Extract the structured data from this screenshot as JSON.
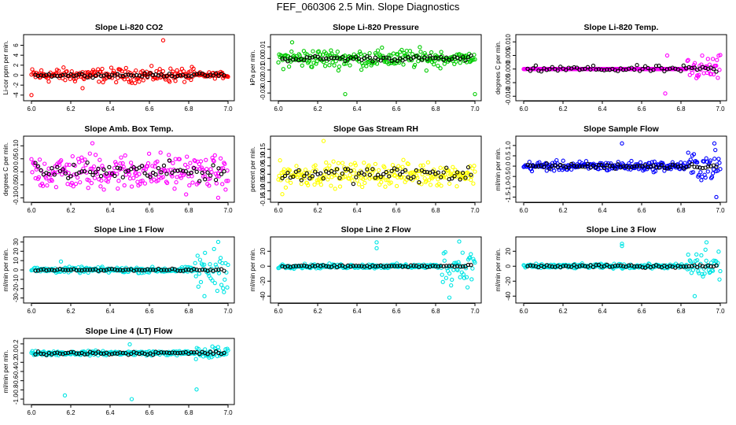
{
  "title": "FEF_060306  2.5 Min. Slope Diagnostics",
  "chart_data": [
    {
      "type": "scatter",
      "title": "Slope Li-820 CO2",
      "ylabel": "Li-cor ppm per min.",
      "color": "#ff0000",
      "xlim": [
        6.0,
        7.0
      ],
      "xticks": [
        6.0,
        6.2,
        6.4,
        6.6,
        6.8,
        7.0
      ],
      "ylim": [
        -4.5,
        7.5
      ],
      "yticks": [
        -4,
        -2,
        0,
        2,
        4,
        6
      ],
      "ytick_labels": [
        "-4",
        "-2",
        "0",
        "2",
        "4",
        "6"
      ],
      "spread": 1.2,
      "tail_spread": 0.5,
      "black_spread": 0.3,
      "outliers": [
        [
          6.67,
          7.0
        ],
        [
          6.0,
          -4.0
        ],
        [
          6.26,
          -2.6
        ]
      ]
    },
    {
      "type": "scatter",
      "title": "Slope Li-820 Pressure",
      "ylabel": "kPa per min.",
      "color": "#00cc00",
      "xlim": [
        6.0,
        7.0
      ],
      "xticks": [
        6.0,
        6.2,
        6.4,
        6.6,
        6.8,
        7.0
      ],
      "ylim": [
        -0.034,
        0.018
      ],
      "yticks": [
        -0.03,
        -0.02,
        -0.01,
        0.0,
        0.01
      ],
      "ytick_labels": [
        "-0.03",
        "-0.02",
        "-0.01",
        "0.00",
        "0.01"
      ],
      "spread": 0.007,
      "tail_spread": 0.004,
      "black_spread": 0.002,
      "outliers": [
        [
          6.34,
          -0.031
        ],
        [
          7.0,
          -0.031
        ],
        [
          6.07,
          0.014
        ]
      ]
    },
    {
      "type": "scatter",
      "title": "Slope Li-820 Temp.",
      "ylabel": "degrees C per min.",
      "color": "#ff00ff",
      "xlim": [
        6.0,
        7.0
      ],
      "xticks": [
        6.0,
        6.2,
        6.4,
        6.6,
        6.8,
        7.0
      ],
      "ylim": [
        -0.0105,
        0.0115
      ],
      "yticks": [
        -0.01,
        -0.005,
        0.0,
        0.005,
        0.01
      ],
      "ytick_labels": [
        "-0.010",
        "-0.005",
        "0.000",
        "0.005",
        "0.010"
      ],
      "spread": 0.0,
      "tail_spread": 0.004,
      "black_spread": 0.001,
      "outliers": [
        [
          6.72,
          -0.009
        ],
        [
          6.73,
          0.005
        ]
      ]
    },
    {
      "type": "scatter",
      "title": "Slope Amb. Box Temp.",
      "ylabel": "degrees C per min.",
      "color": "#ff00ff",
      "xlim": [
        6.0,
        7.0
      ],
      "xticks": [
        6.0,
        6.2,
        6.4,
        6.6,
        6.8,
        7.0
      ],
      "ylim": [
        -0.105,
        0.125
      ],
      "yticks": [
        -0.1,
        -0.05,
        0.0,
        0.05,
        0.1
      ],
      "ytick_labels": [
        "-0.10",
        "-0.05",
        "0.00",
        "0.05",
        "0.10"
      ],
      "spread": 0.06,
      "tail_spread": 0.05,
      "black_spread": 0.03,
      "outliers": [
        [
          6.31,
          0.11
        ],
        [
          6.95,
          -0.1
        ]
      ]
    },
    {
      "type": "scatter",
      "title": "Slope Gas Stream RH",
      "ylabel": "percent per min.",
      "color": "#ffff00",
      "xlim": [
        6.0,
        7.0
      ],
      "xticks": [
        6.0,
        6.2,
        6.4,
        6.6,
        6.8,
        7.0
      ],
      "ylim": [
        -0.15,
        0.21
      ],
      "yticks": [
        -0.15,
        -0.1,
        -0.05,
        0.0,
        0.05,
        0.1,
        0.15
      ],
      "ytick_labels": [
        "-0.15",
        "-0.10",
        "-0.05",
        "0.00",
        "0.05",
        "0.10",
        "0.15"
      ],
      "spread": 0.06,
      "tail_spread": 0.05,
      "black_spread": 0.04,
      "outliers": [
        [
          6.23,
          0.2
        ],
        [
          6.02,
          -0.12
        ]
      ]
    },
    {
      "type": "scatter",
      "title": "Slope Sample Flow",
      "ylabel": "ml/min per min.",
      "color": "#0000ff",
      "xlim": [
        6.0,
        7.0
      ],
      "xticks": [
        6.0,
        6.2,
        6.4,
        6.6,
        6.8,
        7.0
      ],
      "ylim": [
        -1.6,
        1.3
      ],
      "yticks": [
        -1.5,
        -1.0,
        -0.5,
        0.0,
        0.5,
        1.0
      ],
      "ytick_labels": [
        "-1.5",
        "-1.0",
        "-0.5",
        "0.0",
        "0.5",
        "1.0"
      ],
      "spread": 0.2,
      "tail_spread": 0.6,
      "black_spread": 0.1,
      "outliers": [
        [
          6.5,
          1.1
        ],
        [
          6.98,
          -1.5
        ],
        [
          6.97,
          1.1
        ]
      ]
    },
    {
      "type": "scatter",
      "title": "Slope Line 1 Flow",
      "ylabel": "ml/min per min.",
      "color": "#00e5e5",
      "xlim": [
        6.0,
        7.0
      ],
      "xticks": [
        6.0,
        6.2,
        6.4,
        6.6,
        6.8,
        7.0
      ],
      "ylim": [
        -32,
        32
      ],
      "yticks": [
        -30,
        -20,
        -10,
        0,
        10,
        20,
        30
      ],
      "ytick_labels": [
        "-30",
        "-20",
        "-10",
        "0",
        "10",
        "20",
        "30"
      ],
      "spread": 2.5,
      "tail_spread": 18,
      "black_spread": 1,
      "outliers": [
        [
          6.88,
          -28
        ],
        [
          6.95,
          30
        ],
        [
          6.15,
          9
        ]
      ]
    },
    {
      "type": "scatter",
      "title": "Slope Line 2 Flow",
      "ylabel": "ml/min per min.",
      "color": "#00e5e5",
      "xlim": [
        6.0,
        7.0
      ],
      "xticks": [
        6.0,
        6.2,
        6.4,
        6.6,
        6.8,
        7.0
      ],
      "ylim": [
        -45,
        35
      ],
      "yticks": [
        -40,
        -20,
        0,
        20
      ],
      "ytick_labels": [
        "-40",
        "-20",
        "0",
        "20"
      ],
      "spread": 2.5,
      "tail_spread": 20,
      "black_spread": 1.5,
      "outliers": [
        [
          6.5,
          32
        ],
        [
          6.5,
          24
        ],
        [
          6.87,
          -42
        ],
        [
          6.92,
          33
        ]
      ]
    },
    {
      "type": "scatter",
      "title": "Slope Line 3 Flow",
      "ylabel": "ml/min per min.",
      "color": "#00e5e5",
      "xlim": [
        6.0,
        7.0
      ],
      "xticks": [
        6.0,
        6.2,
        6.4,
        6.6,
        6.8,
        7.0
      ],
      "ylim": [
        -45,
        35
      ],
      "yticks": [
        -40,
        -20,
        0,
        20
      ],
      "ytick_labels": [
        "-40",
        "-20",
        "0",
        "20"
      ],
      "spread": 2.5,
      "tail_spread": 20,
      "black_spread": 1.5,
      "outliers": [
        [
          6.5,
          30
        ],
        [
          6.5,
          27
        ],
        [
          6.87,
          -40
        ],
        [
          6.93,
          32
        ]
      ]
    },
    {
      "type": "scatter",
      "title": "Slope Line 4 (LT) Flow",
      "ylabel": "ml/min per min.",
      "color": "#00e5e5",
      "xlim": [
        6.0,
        7.0
      ],
      "xticks": [
        6.0,
        6.2,
        6.4,
        6.6,
        6.8,
        7.0
      ],
      "ylim": [
        -1.05,
        0.25
      ],
      "yticks": [
        -1.0,
        -0.8,
        -0.6,
        -0.4,
        -0.2,
        0.0,
        0.2
      ],
      "ytick_labels": [
        "-1.0",
        "-0.8",
        "-0.6",
        "-0.4",
        "-0.2",
        "0.0",
        "0.2"
      ],
      "spread": 0.04,
      "tail_spread": 0.12,
      "black_spread": 0.03,
      "outliers": [
        [
          6.17,
          -0.92
        ],
        [
          6.51,
          -1.0
        ],
        [
          6.84,
          -0.79
        ],
        [
          6.5,
          0.19
        ]
      ]
    }
  ]
}
